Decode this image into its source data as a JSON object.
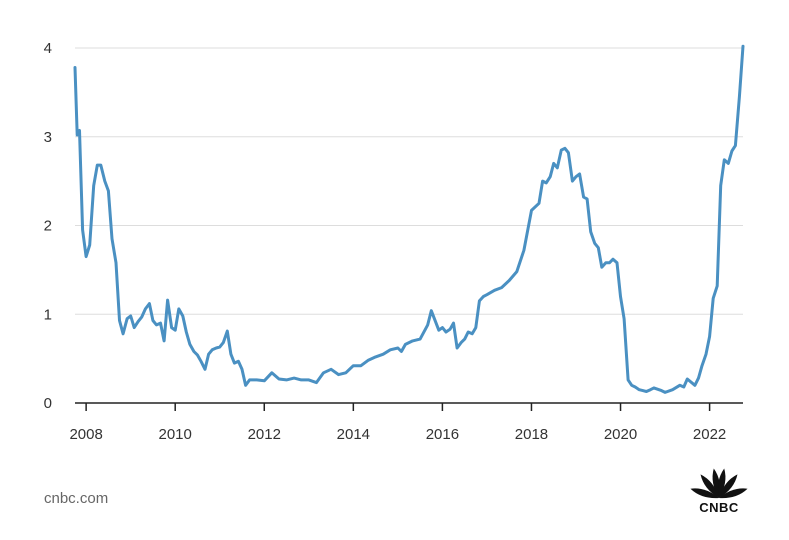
{
  "chart_data": {
    "type": "line",
    "title": "",
    "xlabel": "",
    "ylabel": "",
    "xlim": [
      2007.75,
      2022.75
    ],
    "ylim": [
      0,
      4
    ],
    "grid": true,
    "x_ticks": [
      2008,
      2010,
      2012,
      2014,
      2016,
      2018,
      2020,
      2022
    ],
    "y_ticks": [
      0,
      1,
      2,
      3,
      4
    ],
    "line_color": "#4a90c2",
    "series": [
      {
        "x": [
          2007.75,
          2007.8,
          2007.85,
          2007.92,
          2008.0,
          2008.08,
          2008.17,
          2008.25,
          2008.33,
          2008.42,
          2008.5,
          2008.58,
          2008.67,
          2008.75,
          2008.83,
          2008.92,
          2009.0,
          2009.08,
          2009.17,
          2009.25,
          2009.33,
          2009.42,
          2009.5,
          2009.58,
          2009.67,
          2009.75,
          2009.83,
          2009.92,
          2010.0,
          2010.08,
          2010.17,
          2010.25,
          2010.33,
          2010.42,
          2010.5,
          2010.58,
          2010.67,
          2010.75,
          2010.83,
          2010.92,
          2011.0,
          2011.08,
          2011.17,
          2011.25,
          2011.33,
          2011.42,
          2011.5,
          2011.58,
          2011.67,
          2011.83,
          2012.0,
          2012.17,
          2012.33,
          2012.5,
          2012.67,
          2012.83,
          2013.0,
          2013.17,
          2013.33,
          2013.5,
          2013.67,
          2013.83,
          2014.0,
          2014.17,
          2014.33,
          2014.5,
          2014.67,
          2014.83,
          2015.0,
          2015.08,
          2015.17,
          2015.33,
          2015.5,
          2015.67,
          2015.75,
          2015.92,
          2016.0,
          2016.08,
          2016.17,
          2016.25,
          2016.33,
          2016.42,
          2016.5,
          2016.58,
          2016.67,
          2016.75,
          2016.83,
          2016.92,
          2017.0,
          2017.17,
          2017.33,
          2017.5,
          2017.67,
          2017.83,
          2018.0,
          2018.17,
          2018.25,
          2018.33,
          2018.42,
          2018.5,
          2018.58,
          2018.67,
          2018.75,
          2018.83,
          2018.92,
          2019.0,
          2019.08,
          2019.17,
          2019.25,
          2019.33,
          2019.42,
          2019.5,
          2019.58,
          2019.67,
          2019.75,
          2019.83,
          2019.92,
          2020.0,
          2020.08,
          2020.17,
          2020.25,
          2020.33,
          2020.42,
          2020.5,
          2020.58,
          2020.67,
          2020.75,
          2020.92,
          2021.0,
          2021.17,
          2021.33,
          2021.42,
          2021.5,
          2021.67,
          2021.75,
          2021.83,
          2021.92,
          2022.0,
          2022.08,
          2022.17,
          2022.25,
          2022.33,
          2022.42,
          2022.5,
          2022.58,
          2022.67,
          2022.75
        ],
        "values": [
          3.78,
          3.02,
          3.07,
          1.95,
          1.65,
          1.78,
          2.45,
          2.68,
          2.68,
          2.5,
          2.39,
          1.85,
          1.58,
          0.93,
          0.78,
          0.95,
          0.98,
          0.85,
          0.92,
          0.97,
          1.06,
          1.12,
          0.93,
          0.88,
          0.9,
          0.7,
          1.16,
          0.85,
          0.82,
          1.06,
          0.98,
          0.8,
          0.66,
          0.58,
          0.54,
          0.47,
          0.38,
          0.55,
          0.6,
          0.62,
          0.63,
          0.68,
          0.81,
          0.55,
          0.45,
          0.47,
          0.38,
          0.2,
          0.26,
          0.26,
          0.25,
          0.34,
          0.27,
          0.26,
          0.28,
          0.26,
          0.26,
          0.23,
          0.34,
          0.38,
          0.32,
          0.34,
          0.42,
          0.42,
          0.48,
          0.52,
          0.55,
          0.6,
          0.62,
          0.58,
          0.66,
          0.7,
          0.72,
          0.88,
          1.04,
          0.82,
          0.85,
          0.8,
          0.83,
          0.9,
          0.62,
          0.68,
          0.72,
          0.8,
          0.78,
          0.85,
          1.15,
          1.2,
          1.22,
          1.27,
          1.3,
          1.38,
          1.48,
          1.72,
          2.17,
          2.25,
          2.5,
          2.48,
          2.55,
          2.7,
          2.65,
          2.85,
          2.87,
          2.82,
          2.5,
          2.55,
          2.58,
          2.32,
          2.3,
          1.93,
          1.8,
          1.75,
          1.53,
          1.58,
          1.58,
          1.62,
          1.58,
          1.2,
          0.95,
          0.26,
          0.2,
          0.18,
          0.15,
          0.14,
          0.13,
          0.15,
          0.17,
          0.14,
          0.12,
          0.15,
          0.2,
          0.18,
          0.27,
          0.2,
          0.28,
          0.42,
          0.55,
          0.75,
          1.18,
          1.32,
          2.45,
          2.74,
          2.7,
          2.84,
          2.9,
          3.45,
          4.02
        ]
      }
    ]
  },
  "footer": {
    "source": "cnbc.com",
    "logo_text": "CNBC"
  }
}
